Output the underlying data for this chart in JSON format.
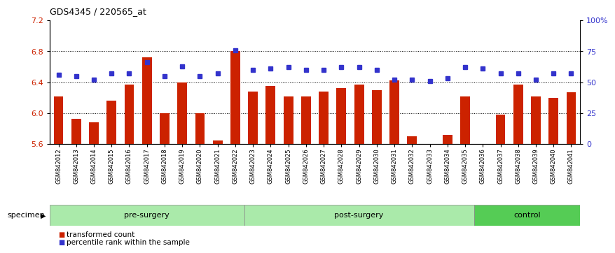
{
  "title": "GDS4345 / 220565_at",
  "samples": [
    "GSM842012",
    "GSM842013",
    "GSM842014",
    "GSM842015",
    "GSM842016",
    "GSM842017",
    "GSM842018",
    "GSM842019",
    "GSM842020",
    "GSM842021",
    "GSM842022",
    "GSM842023",
    "GSM842024",
    "GSM842025",
    "GSM842026",
    "GSM842027",
    "GSM842028",
    "GSM842029",
    "GSM842030",
    "GSM842031",
    "GSM842032",
    "GSM842033",
    "GSM842034",
    "GSM842035",
    "GSM842036",
    "GSM842037",
    "GSM842038",
    "GSM842039",
    "GSM842040",
    "GSM842041"
  ],
  "bar_values": [
    6.22,
    5.93,
    5.88,
    6.16,
    6.37,
    6.72,
    6.0,
    6.4,
    6.0,
    5.65,
    6.8,
    6.28,
    6.35,
    6.22,
    6.22,
    6.28,
    6.32,
    6.37,
    6.3,
    6.42,
    5.7,
    5.6,
    5.72,
    6.22,
    5.58,
    5.98,
    6.37,
    6.22,
    6.2,
    6.27
  ],
  "percentile_values": [
    56,
    55,
    52,
    57,
    57,
    66,
    55,
    63,
    55,
    57,
    76,
    60,
    61,
    62,
    60,
    60,
    62,
    62,
    60,
    52,
    52,
    51,
    53,
    62,
    61,
    57,
    57,
    52,
    57,
    57
  ],
  "group_defs": [
    {
      "start": 0,
      "end": 10,
      "color": "#aaeaaa",
      "label": "pre-surgery"
    },
    {
      "start": 11,
      "end": 23,
      "color": "#aaeaaa",
      "label": "post-surgery"
    },
    {
      "start": 24,
      "end": 29,
      "color": "#55cc55",
      "label": "control"
    }
  ],
  "ylim_left": [
    5.6,
    7.2
  ],
  "ylim_right": [
    0,
    100
  ],
  "yticks_left": [
    5.6,
    6.0,
    6.4,
    6.8,
    7.2
  ],
  "yticks_right": [
    0,
    25,
    50,
    75,
    100
  ],
  "ytick_labels_right": [
    "0",
    "25",
    "50",
    "75",
    "100%"
  ],
  "bar_color": "#cc2200",
  "dot_color": "#3333cc",
  "background_color": "#ffffff",
  "legend_items": [
    "transformed count",
    "percentile rank within the sample"
  ],
  "legend_colors": [
    "#cc2200",
    "#3333cc"
  ],
  "specimen_label": "specimen"
}
